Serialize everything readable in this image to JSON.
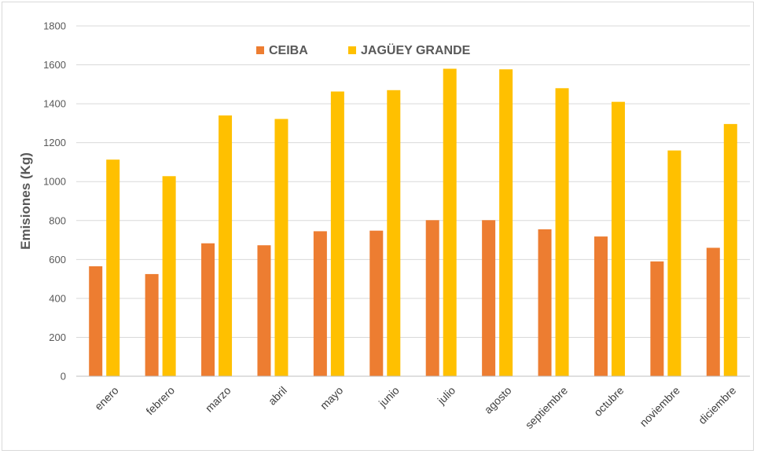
{
  "chart_data": {
    "type": "bar",
    "title": "",
    "xlabel": "",
    "ylabel": "Emisiones (Kg)",
    "ylim": [
      0,
      1800
    ],
    "yticks": [
      0,
      200,
      400,
      600,
      800,
      1000,
      1200,
      1400,
      1600,
      1800
    ],
    "grid": true,
    "legend_position": "top",
    "categories": [
      "enero",
      "febrero",
      "marzo",
      "abril",
      "mayo",
      "junio",
      "julio",
      "agosto",
      "septiembre",
      "octubre",
      "noviembre",
      "diciembre"
    ],
    "series": [
      {
        "name": "CEIBA",
        "color": "#ED7D31",
        "values": [
          565,
          525,
          683,
          673,
          745,
          748,
          802,
          802,
          755,
          718,
          590,
          660
        ]
      },
      {
        "name": "JAGÜEY GRANDE",
        "color": "#FFC000",
        "values": [
          1113,
          1028,
          1340,
          1322,
          1463,
          1470,
          1580,
          1577,
          1480,
          1410,
          1160,
          1296
        ]
      }
    ]
  }
}
